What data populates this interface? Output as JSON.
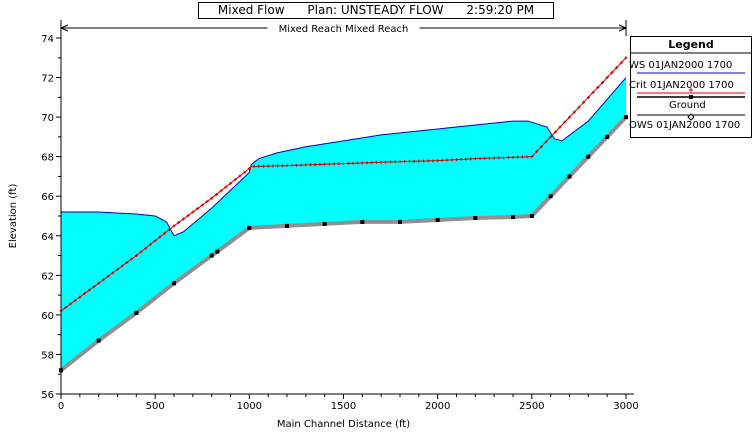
{
  "header": {
    "title_line": "Mixed Flow      Plan: UNSTEADY FLOW      2:59:20 PM"
  },
  "colors": {
    "water_fill": "#00ffff",
    "water_outline": "#0000c8",
    "crit_line": "#dd0000",
    "ground": "#909090",
    "ground_marker": "#000000"
  },
  "legend": {
    "title": "Legend",
    "items": [
      {
        "label": "WS  01JAN2000 1700",
        "style": "ws"
      },
      {
        "label": "Crit  01JAN2000 1700",
        "style": "crit"
      },
      {
        "label": "Ground",
        "style": "ground"
      },
      {
        "label": "OWS  01JAN2000 1700",
        "style": "ows"
      }
    ]
  },
  "chart_data": {
    "type": "line",
    "reach_label": "Mixed Reach Mixed Reach",
    "xlabel": "Main Channel Distance (ft)",
    "ylabel": "Elevation (ft)",
    "xlim": [
      0,
      3000
    ],
    "ylim": [
      56,
      74
    ],
    "x_ticks": [
      0,
      500,
      1000,
      1500,
      2000,
      2500,
      3000
    ],
    "y_ticks": [
      56,
      58,
      60,
      62,
      64,
      66,
      68,
      70,
      72,
      74
    ],
    "series": [
      {
        "name": "Ground",
        "x": [
          0,
          200,
          400,
          600,
          800,
          830,
          1000,
          1200,
          1400,
          1600,
          1800,
          2000,
          2200,
          2400,
          2500,
          2600,
          2700,
          2800,
          2900,
          3000
        ],
        "y": [
          57.2,
          58.7,
          60.1,
          61.6,
          63.0,
          63.2,
          64.4,
          64.5,
          64.6,
          64.7,
          64.7,
          64.8,
          64.9,
          64.95,
          65.0,
          66.0,
          67.0,
          68.0,
          69.0,
          70.0
        ]
      },
      {
        "name": "WS  01JAN2000 1700",
        "x": [
          0,
          200,
          400,
          500,
          560,
          600,
          650,
          800,
          1000,
          1010,
          1050,
          1150,
          1300,
          1500,
          1700,
          2000,
          2200,
          2400,
          2480,
          2580,
          2620,
          2660,
          2800,
          3000
        ],
        "y": [
          65.2,
          65.2,
          65.1,
          65.0,
          64.7,
          64.0,
          64.2,
          65.4,
          67.2,
          67.6,
          67.9,
          68.2,
          68.5,
          68.8,
          69.1,
          69.4,
          69.6,
          69.8,
          69.8,
          69.5,
          68.9,
          68.8,
          69.8,
          72.0
        ]
      },
      {
        "name": "Crit  01JAN2000 1700",
        "x": [
          0,
          200,
          400,
          600,
          800,
          1000,
          1010,
          1200,
          1500,
          1800,
          2000,
          2200,
          2500,
          2600,
          3000
        ],
        "y": [
          60.2,
          61.6,
          63.0,
          64.5,
          65.9,
          67.4,
          67.5,
          67.55,
          67.65,
          67.75,
          67.8,
          67.9,
          68.0,
          69.0,
          73.0
        ]
      }
    ]
  }
}
